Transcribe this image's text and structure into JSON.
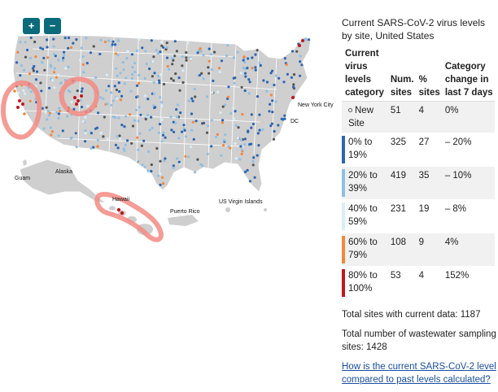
{
  "zoom": {
    "in_label": "+",
    "out_label": "−"
  },
  "map_labels": {
    "guam": "Guam",
    "alaska": "Alaska",
    "hawaii": "Hawaii",
    "puerto_rico": "Puerto Rico",
    "us_virgin_islands": "US Virgin Islands",
    "new_york_city": "New York City",
    "dc": "DC"
  },
  "colors": {
    "land": "#cfcfcf",
    "border": "#ffffff",
    "new_site": "#ffffff",
    "level_0_19": "#2c66b3",
    "level_20_39": "#8fbfe3",
    "level_40_59": "#d9eef8",
    "level_60_79": "#f4873c",
    "level_80_100": "#c4161c",
    "no_data": "#555555",
    "annotation": "#f28b82",
    "zoom_button": "#0b6b7a",
    "link": "#1a4fa0"
  },
  "panel": {
    "title": "Current SARS-CoV-2 virus levels by site, United States",
    "headers": {
      "category": "Current virus levels category",
      "num_sites": "Num. sites",
      "pct_sites": "% sites",
      "change": "Category change in last 7 days"
    },
    "rows": [
      {
        "category": "New Site",
        "num": "51",
        "pct": "4",
        "change": "0%",
        "color": "#ffffff"
      },
      {
        "category": "0% to 19%",
        "num": "325",
        "pct": "27",
        "change": "– 20%",
        "color": "#2c66b3"
      },
      {
        "category": "20% to 39%",
        "num": "419",
        "pct": "35",
        "change": "– 10%",
        "color": "#8fbfe3"
      },
      {
        "category": "40% to 59%",
        "num": "231",
        "pct": "19",
        "change": "– 8%",
        "color": "#d9eef8"
      },
      {
        "category": "60% to 79%",
        "num": "108",
        "pct": "9",
        "change": "4%",
        "color": "#f4873c"
      },
      {
        "category": "80% to 100%",
        "num": "53",
        "pct": "4",
        "change": "152%",
        "color": "#c4161c"
      }
    ],
    "total_current": "Total sites with current data: 1187",
    "total_sampling": "Total number of wastewater sampling sites: 1428",
    "link_text": "How is the current SARS-CoV-2 level compared to past levels calculated?"
  }
}
